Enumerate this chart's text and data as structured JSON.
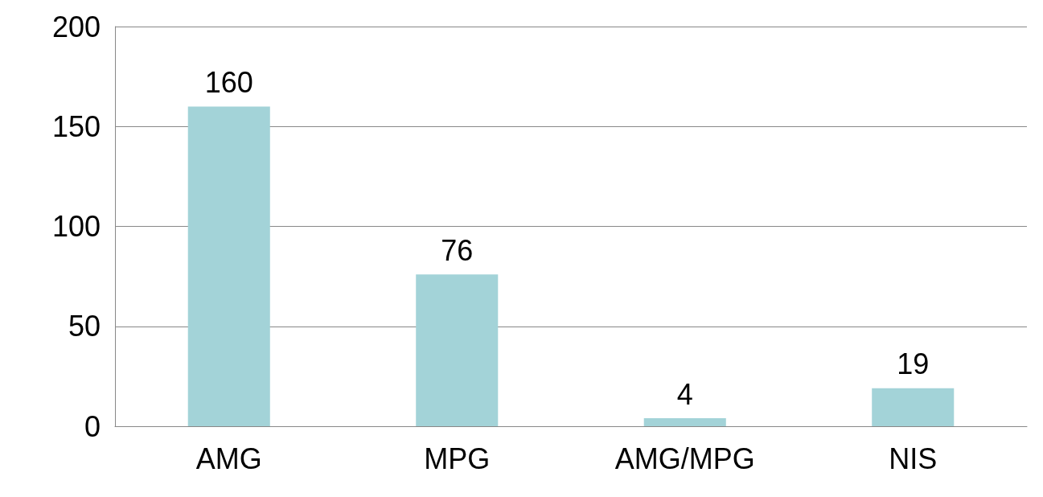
{
  "chart_data": {
    "type": "bar",
    "categories": [
      "AMG",
      "MPG",
      "AMG/MPG",
      "NIS"
    ],
    "values": [
      160,
      76,
      4,
      19
    ],
    "color": "#a3d3d8",
    "ylim": [
      0,
      200
    ],
    "yticks": [
      0,
      50,
      100,
      150,
      200
    ],
    "grid": "y",
    "data_labels": true
  }
}
